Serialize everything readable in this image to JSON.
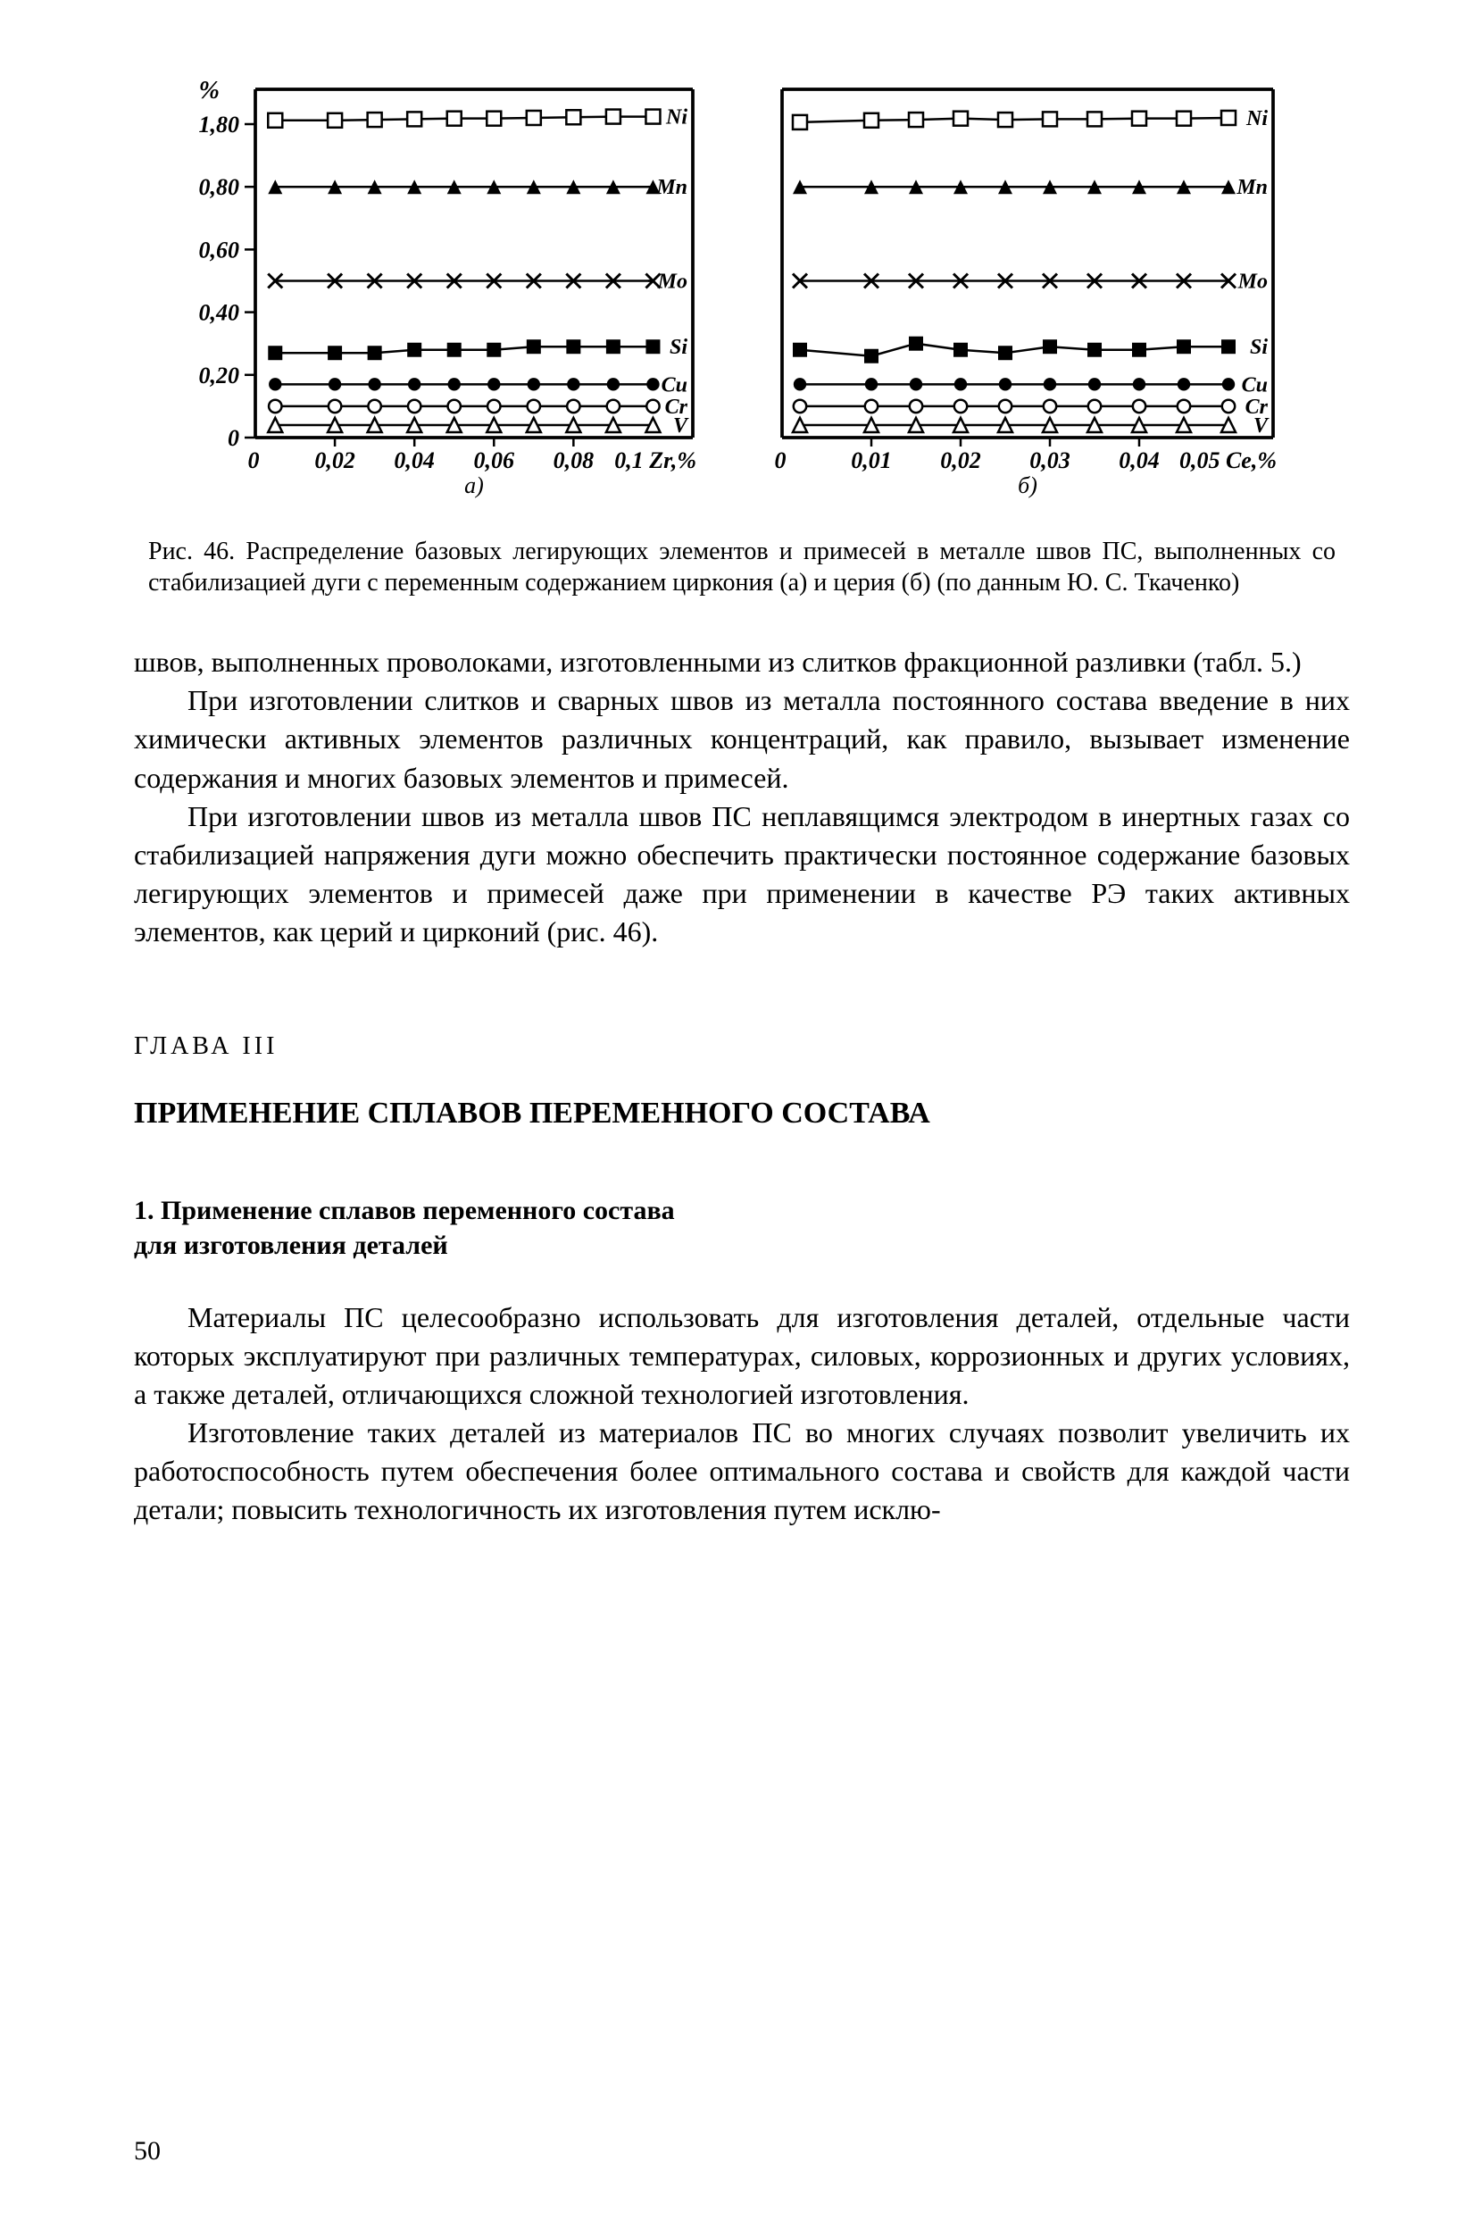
{
  "figure": {
    "caption": "Рис. 46. Распределение базовых легирующих элементов и примесей в металле швов ПС, выполненных со стабилизацией дуги с переменным содержанием циркония (а) и церия (б) (по данным Ю. С. Ткаченко)",
    "y_axis_label": "%",
    "y_ticks": [
      {
        "v": 0,
        "label": "0"
      },
      {
        "v": 0.2,
        "label": "0,20"
      },
      {
        "v": 0.4,
        "label": "0,40"
      },
      {
        "v": 0.6,
        "label": "0,60"
      },
      {
        "v": 0.8,
        "label": "0,80"
      },
      {
        "v": 1.8,
        "label": "1,80"
      }
    ],
    "panel_a": {
      "sub_label": "а)",
      "x_axis_label": "0,1 Zr,%",
      "x_ticks": [
        {
          "v": 0.02,
          "label": "0,02"
        },
        {
          "v": 0.04,
          "label": "0,04"
        },
        {
          "v": 0.06,
          "label": "0,06"
        },
        {
          "v": 0.08,
          "label": "0,08"
        }
      ],
      "x_min": 0,
      "x_max": 0.11,
      "series": [
        {
          "name": "Ni",
          "marker": "open-square",
          "x": [
            0.005,
            0.02,
            0.03,
            0.04,
            0.05,
            0.06,
            0.07,
            0.08,
            0.09,
            0.1
          ],
          "y": [
            1.86,
            1.86,
            1.87,
            1.88,
            1.89,
            1.89,
            1.9,
            1.91,
            1.92,
            1.92
          ]
        },
        {
          "name": "Mn",
          "marker": "triangle",
          "x": [
            0.005,
            0.02,
            0.03,
            0.04,
            0.05,
            0.06,
            0.07,
            0.08,
            0.09,
            0.1
          ],
          "y": [
            0.8,
            0.8,
            0.8,
            0.8,
            0.8,
            0.8,
            0.8,
            0.8,
            0.8,
            0.8
          ]
        },
        {
          "name": "Mo",
          "marker": "x",
          "x": [
            0.005,
            0.02,
            0.03,
            0.04,
            0.05,
            0.06,
            0.07,
            0.08,
            0.09,
            0.1
          ],
          "y": [
            0.5,
            0.5,
            0.5,
            0.5,
            0.5,
            0.5,
            0.5,
            0.5,
            0.5,
            0.5
          ]
        },
        {
          "name": "Si",
          "marker": "square",
          "x": [
            0.005,
            0.02,
            0.03,
            0.04,
            0.05,
            0.06,
            0.07,
            0.08,
            0.09,
            0.1
          ],
          "y": [
            0.27,
            0.27,
            0.27,
            0.28,
            0.28,
            0.28,
            0.29,
            0.29,
            0.29,
            0.29
          ]
        },
        {
          "name": "Cu",
          "marker": "dot",
          "x": [
            0.005,
            0.02,
            0.03,
            0.04,
            0.05,
            0.06,
            0.07,
            0.08,
            0.09,
            0.1
          ],
          "y": [
            0.17,
            0.17,
            0.17,
            0.17,
            0.17,
            0.17,
            0.17,
            0.17,
            0.17,
            0.17
          ]
        },
        {
          "name": "Cr",
          "marker": "open-circle",
          "x": [
            0.005,
            0.02,
            0.03,
            0.04,
            0.05,
            0.06,
            0.07,
            0.08,
            0.09,
            0.1
          ],
          "y": [
            0.1,
            0.1,
            0.1,
            0.1,
            0.1,
            0.1,
            0.1,
            0.1,
            0.1,
            0.1
          ]
        },
        {
          "name": "V",
          "marker": "open-triangle",
          "x": [
            0.005,
            0.02,
            0.03,
            0.04,
            0.05,
            0.06,
            0.07,
            0.08,
            0.09,
            0.1
          ],
          "y": [
            0.04,
            0.04,
            0.04,
            0.04,
            0.04,
            0.04,
            0.04,
            0.04,
            0.04,
            0.04
          ]
        }
      ]
    },
    "panel_b": {
      "sub_label": "б)",
      "x_axis_label": "0,05 Ce,%",
      "x_ticks": [
        {
          "v": 0.01,
          "label": "0,01"
        },
        {
          "v": 0.02,
          "label": "0,02"
        },
        {
          "v": 0.03,
          "label": "0,03"
        },
        {
          "v": 0.04,
          "label": "0,04"
        }
      ],
      "x_min": 0,
      "x_max": 0.055,
      "series": [
        {
          "name": "Ni",
          "marker": "open-square",
          "x": [
            0.002,
            0.01,
            0.015,
            0.02,
            0.025,
            0.03,
            0.035,
            0.04,
            0.045,
            0.05
          ],
          "y": [
            1.83,
            1.86,
            1.87,
            1.89,
            1.87,
            1.88,
            1.88,
            1.89,
            1.89,
            1.9
          ]
        },
        {
          "name": "Mn",
          "marker": "triangle",
          "x": [
            0.002,
            0.01,
            0.015,
            0.02,
            0.025,
            0.03,
            0.035,
            0.04,
            0.045,
            0.05
          ],
          "y": [
            0.8,
            0.8,
            0.8,
            0.8,
            0.8,
            0.8,
            0.8,
            0.8,
            0.8,
            0.8
          ]
        },
        {
          "name": "Mo",
          "marker": "x",
          "x": [
            0.002,
            0.01,
            0.015,
            0.02,
            0.025,
            0.03,
            0.035,
            0.04,
            0.045,
            0.05
          ],
          "y": [
            0.5,
            0.5,
            0.5,
            0.5,
            0.5,
            0.5,
            0.5,
            0.5,
            0.5,
            0.5
          ]
        },
        {
          "name": "Si",
          "marker": "square",
          "x": [
            0.002,
            0.01,
            0.015,
            0.02,
            0.025,
            0.03,
            0.035,
            0.04,
            0.045,
            0.05
          ],
          "y": [
            0.28,
            0.26,
            0.3,
            0.28,
            0.27,
            0.29,
            0.28,
            0.28,
            0.29,
            0.29
          ]
        },
        {
          "name": "Cu",
          "marker": "dot",
          "x": [
            0.002,
            0.01,
            0.015,
            0.02,
            0.025,
            0.03,
            0.035,
            0.04,
            0.045,
            0.05
          ],
          "y": [
            0.17,
            0.17,
            0.17,
            0.17,
            0.17,
            0.17,
            0.17,
            0.17,
            0.17,
            0.17
          ]
        },
        {
          "name": "Cr",
          "marker": "open-circle",
          "x": [
            0.002,
            0.01,
            0.015,
            0.02,
            0.025,
            0.03,
            0.035,
            0.04,
            0.045,
            0.05
          ],
          "y": [
            0.1,
            0.1,
            0.1,
            0.1,
            0.1,
            0.1,
            0.1,
            0.1,
            0.1,
            0.1
          ]
        },
        {
          "name": "V",
          "marker": "open-triangle",
          "x": [
            0.002,
            0.01,
            0.015,
            0.02,
            0.025,
            0.03,
            0.035,
            0.04,
            0.045,
            0.05
          ],
          "y": [
            0.04,
            0.04,
            0.04,
            0.04,
            0.04,
            0.04,
            0.04,
            0.04,
            0.04,
            0.04
          ]
        }
      ]
    },
    "style": {
      "stroke": "#000000",
      "stroke_width": 2.5,
      "marker_size": 8,
      "font_size_tick": 26,
      "font_size_label": 28,
      "font_size_series": 24,
      "background": "#ffffff"
    }
  },
  "paragraphs": {
    "p1": "швов, выполненных проволоками, изготовленными из слитков фракционной разливки (табл. 5.)",
    "p2": "При изготовлении слитков и сварных швов из металла постоянного состава введение в них химически активных элементов различных концентраций, как правило, вызывает изменение содержания и многих базовых элементов и примесей.",
    "p3": "При изготовлении швов из металла швов ПС неплавящимся электродом в инертных газах со стабилизацией напряжения дуги можно обеспечить практически постоянное содержание базовых легирующих элементов и примесей даже при применении в качестве РЭ таких активных элементов, как церий и цирконий (рис. 46)."
  },
  "chapter_label": "ГЛАВА III",
  "chapter_title": "ПРИМЕНЕНИЕ СПЛАВОВ ПЕРЕМЕННОГО СОСТАВА",
  "section_title_line1": "1. Применение сплавов переменного состава",
  "section_title_line2": "для изготовления деталей",
  "paragraphs2": {
    "p4": "Материалы ПС целесообразно использовать для изготовления деталей, отдельные части которых эксплуатируют при различных температурах, силовых, коррозионных и других условиях, а также деталей, отличающихся сложной технологией изготовления.",
    "p5": "Изготовление таких деталей из материалов ПС во многих случаях позволит увеличить их работоспособность путем обеспечения более оптимального состава и свойств для каждой части детали; повысить технологичность их изготовления путем исклю-"
  },
  "page_number": "50"
}
